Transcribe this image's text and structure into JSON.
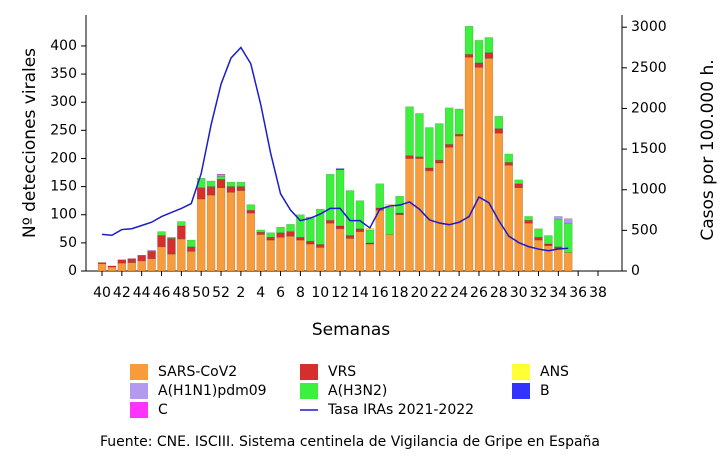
{
  "chart_data": {
    "type": "bar",
    "stacked": true,
    "y_label": "Nº detecciones virales",
    "y2_label": "Casos por 100.000 h.",
    "x_label": "Semanas",
    "source": "Fuente: CNE. ISCIII. Sistema centinela de Vigilancia de Gripe en España",
    "categories": [
      "40",
      null,
      "42",
      null,
      "44",
      null,
      "46",
      null,
      "48",
      null,
      "50",
      null,
      "52",
      null,
      "2",
      null,
      "4",
      null,
      "6",
      null,
      "8",
      null,
      "10",
      null,
      "12",
      null,
      "14",
      null,
      "16",
      null,
      "18",
      null,
      "20",
      null,
      "22",
      null,
      "24",
      null,
      "26",
      null,
      "28",
      null,
      "30",
      null,
      "32",
      null,
      "34",
      null,
      "36",
      null,
      "38"
    ],
    "ylim": [
      0,
      455
    ],
    "yticks": [
      0,
      50,
      100,
      150,
      200,
      250,
      300,
      350,
      400
    ],
    "y2lim": [
      0,
      3150
    ],
    "y2ticks": [
      0,
      500,
      1000,
      1500,
      2000,
      2500,
      3000
    ],
    "series": [
      {
        "name": "SARS-CoV2",
        "color": "#f89b3a",
        "values": [
          13,
          7,
          14,
          15,
          18,
          22,
          43,
          30,
          57,
          35,
          128,
          135,
          148,
          140,
          143,
          103,
          65,
          55,
          60,
          62,
          55,
          48,
          42,
          85,
          75,
          58,
          70,
          48,
          108,
          65,
          100,
          200,
          200,
          178,
          192,
          220,
          240,
          380,
          362,
          378,
          245,
          188,
          148,
          85,
          55,
          45,
          40,
          33,
          null,
          null,
          null
        ]
      },
      {
        "name": "VRS",
        "color": "#d42e2e",
        "values": [
          2,
          2,
          6,
          7,
          10,
          13,
          20,
          28,
          23,
          8,
          20,
          15,
          15,
          10,
          7,
          5,
          4,
          5,
          8,
          8,
          5,
          5,
          5,
          5,
          5,
          5,
          5,
          2,
          4,
          0,
          3,
          5,
          3,
          5,
          5,
          5,
          3,
          5,
          8,
          10,
          8,
          5,
          7,
          5,
          5,
          3,
          3,
          0,
          null,
          null,
          null
        ]
      },
      {
        "name": "A(H3N2)",
        "color": "#3ef03e",
        "values": [
          0,
          0,
          0,
          0,
          0,
          0,
          7,
          2,
          8,
          12,
          17,
          10,
          5,
          8,
          8,
          10,
          4,
          8,
          10,
          13,
          40,
          43,
          63,
          82,
          100,
          80,
          50,
          23,
          43,
          48,
          30,
          87,
          77,
          72,
          65,
          65,
          45,
          50,
          40,
          27,
          22,
          15,
          7,
          7,
          15,
          15,
          49,
          52,
          null,
          null,
          null
        ]
      },
      {
        "name": "A(H1N1)pdm09",
        "color": "#b39af0",
        "values": [
          0,
          0,
          0,
          0,
          0,
          2,
          0,
          0,
          0,
          0,
          0,
          0,
          3,
          0,
          0,
          0,
          0,
          0,
          0,
          0,
          0,
          0,
          0,
          0,
          0,
          0,
          0,
          0,
          0,
          0,
          0,
          0,
          0,
          0,
          0,
          0,
          0,
          0,
          0,
          0,
          0,
          0,
          0,
          0,
          0,
          0,
          5,
          8,
          null,
          null,
          null
        ]
      },
      {
        "name": "C",
        "color": "#ff33ff",
        "values": [
          0,
          0,
          0,
          0,
          0,
          0,
          0,
          0,
          0,
          0,
          0,
          0,
          1,
          0,
          0,
          0,
          0,
          0,
          0,
          0,
          0,
          0,
          0,
          0,
          0,
          0,
          0,
          0,
          0,
          0,
          0,
          0,
          0,
          0,
          0,
          0,
          0,
          0,
          0,
          0,
          0,
          0,
          0,
          0,
          0,
          0,
          0,
          0,
          null,
          null,
          null
        ]
      },
      {
        "name": "ANS",
        "color": "#ffff33",
        "values": [
          0,
          0,
          0,
          0,
          0,
          0,
          0,
          0,
          0,
          0,
          0,
          0,
          0,
          0,
          0,
          0,
          0,
          0,
          0,
          0,
          0,
          0,
          0,
          0,
          0,
          0,
          0,
          3,
          0,
          5,
          0,
          0,
          0,
          0,
          0,
          0,
          0,
          0,
          0,
          0,
          0,
          0,
          0,
          0,
          0,
          0,
          0,
          0,
          null,
          null,
          null
        ]
      },
      {
        "name": "B",
        "color": "#3333ff",
        "values": [
          0,
          0,
          0,
          0,
          0,
          0,
          0,
          0,
          0,
          0,
          0,
          0,
          0,
          0,
          0,
          0,
          0,
          0,
          0,
          0,
          0,
          0,
          0,
          0,
          2,
          0,
          0,
          0,
          0,
          0,
          0,
          0,
          0,
          0,
          0,
          0,
          0,
          0,
          0,
          0,
          0,
          0,
          0,
          0,
          0,
          0,
          0,
          0,
          null,
          null,
          null
        ]
      },
      {
        "name": "Tasa IRAs 2021-2022",
        "color": "#1c1ccc",
        "type": "line",
        "axis": "y2",
        "values": [
          450,
          440,
          510,
          520,
          560,
          600,
          670,
          720,
          770,
          830,
          1200,
          1800,
          2300,
          2620,
          2750,
          2550,
          2050,
          1450,
          950,
          750,
          620,
          650,
          700,
          770,
          770,
          620,
          620,
          530,
          760,
          800,
          810,
          850,
          760,
          630,
          590,
          570,
          600,
          670,
          910,
          840,
          620,
          430,
          350,
          300,
          270,
          250,
          270,
          280,
          null,
          null,
          null
        ]
      }
    ]
  }
}
